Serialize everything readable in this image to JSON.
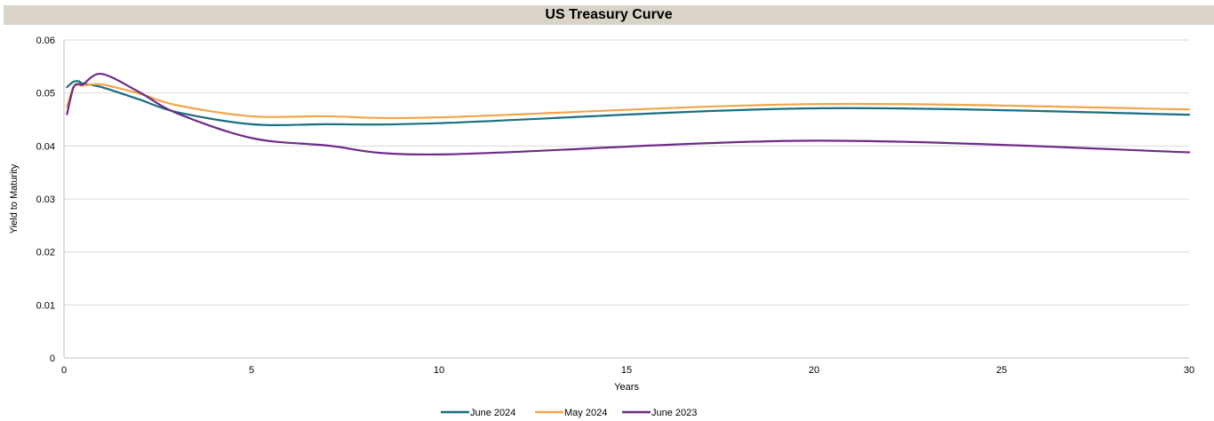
{
  "chart_data": {
    "type": "line",
    "title": "US Treasury Curve",
    "xlabel": "Years",
    "ylabel": "Yield to Maturity",
    "xlim": [
      0,
      30
    ],
    "ylim": [
      0,
      0.06
    ],
    "x_ticks": [
      "0",
      "5",
      "10",
      "15",
      "20",
      "25",
      "30"
    ],
    "y_ticks": [
      "0",
      "0.01",
      "0.02",
      "0.03",
      "0.04",
      "0.05",
      "0.06"
    ],
    "grid": "horizontal",
    "legend_position": "bottom",
    "series": [
      {
        "name": "June 2024",
        "color": "#1a6e80",
        "x": [
          0.08,
          0.25,
          0.4,
          0.5,
          1,
          2,
          3,
          5,
          7,
          10,
          20,
          30
        ],
        "y": [
          0.0511,
          0.0521,
          0.0522,
          0.0518,
          0.0511,
          0.0488,
          0.0464,
          0.0441,
          0.0441,
          0.0443,
          0.0471,
          0.0459
        ]
      },
      {
        "name": "May 2024",
        "color": "#f2a54a",
        "x": [
          0.08,
          0.25,
          0.4,
          0.5,
          1,
          2,
          3,
          5,
          7,
          10,
          20,
          30
        ],
        "y": [
          0.0474,
          0.0511,
          0.0515,
          0.0514,
          0.0516,
          0.0499,
          0.0477,
          0.0456,
          0.0456,
          0.0454,
          0.0479,
          0.0469
        ]
      },
      {
        "name": "June 2023",
        "color": "#6e2b86",
        "x": [
          0.08,
          0.25,
          0.4,
          0.5,
          1,
          2,
          3,
          5,
          7,
          10,
          20,
          30
        ],
        "y": [
          0.046,
          0.051,
          0.0517,
          0.0516,
          0.0536,
          0.0502,
          0.0462,
          0.0415,
          0.0401,
          0.0384,
          0.041,
          0.0388
        ]
      }
    ]
  }
}
